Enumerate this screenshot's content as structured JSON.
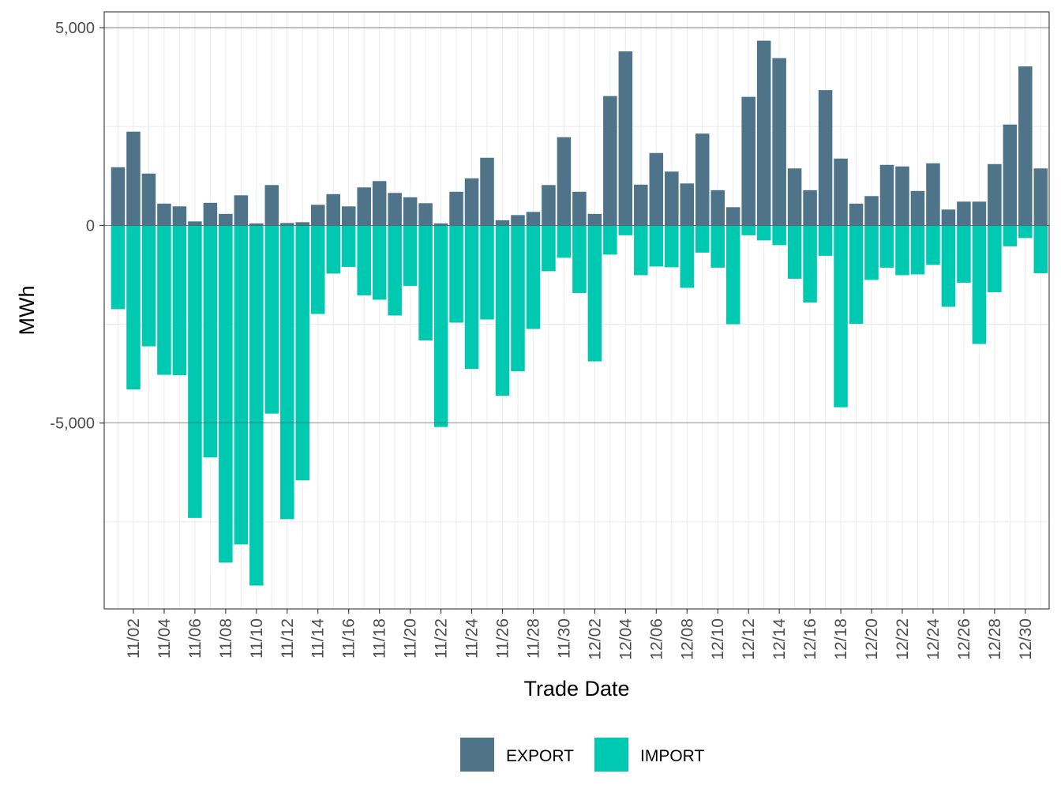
{
  "chart_data": {
    "type": "bar",
    "xlabel": "Trade Date",
    "ylabel": "MWh",
    "ylim": [
      -9700,
      5400
    ],
    "y_ticks": [
      5000,
      0,
      -5000
    ],
    "y_tick_labels": [
      "5,000",
      "0",
      "-5,000"
    ],
    "grid": true,
    "legend_position": "bottom",
    "colors": {
      "EXPORT": "#4f7489",
      "IMPORT": "#00c9b1"
    },
    "x_tick_labels": [
      "11/02",
      "11/04",
      "11/06",
      "11/08",
      "11/10",
      "11/12",
      "11/14",
      "11/16",
      "11/18",
      "11/20",
      "11/22",
      "11/24",
      "11/26",
      "11/28",
      "11/30",
      "12/02",
      "12/04",
      "12/06",
      "12/08",
      "12/10",
      "12/12",
      "12/14",
      "12/16",
      "12/18",
      "12/20",
      "12/22",
      "12/24",
      "12/26",
      "12/28",
      "12/30"
    ],
    "categories": [
      "11/01",
      "11/02",
      "11/03",
      "11/04",
      "11/05",
      "11/06",
      "11/07",
      "11/08",
      "11/09",
      "11/10",
      "11/11",
      "11/12",
      "11/13",
      "11/14",
      "11/15",
      "11/16",
      "11/17",
      "11/18",
      "11/19",
      "11/20",
      "11/21",
      "11/22",
      "11/23",
      "11/24",
      "11/25",
      "11/26",
      "11/27",
      "11/28",
      "11/29",
      "11/30",
      "12/01",
      "12/02",
      "12/03",
      "12/04",
      "12/05",
      "12/06",
      "12/07",
      "12/08",
      "12/09",
      "12/10",
      "12/11",
      "12/12",
      "12/13",
      "12/14",
      "12/15",
      "12/16",
      "12/17",
      "12/18",
      "12/19",
      "12/20",
      "12/21",
      "12/22",
      "12/23",
      "12/24",
      "12/25",
      "12/26",
      "12/27",
      "12/28",
      "12/29",
      "12/30",
      "12/31"
    ],
    "series": [
      {
        "name": "EXPORT",
        "values": [
          1470,
          2370,
          1310,
          550,
          480,
          100,
          570,
          290,
          760,
          50,
          1020,
          60,
          80,
          520,
          790,
          480,
          960,
          1120,
          820,
          710,
          560,
          50,
          850,
          1190,
          1710,
          130,
          260,
          340,
          1020,
          2230,
          850,
          290,
          3270,
          4400,
          1030,
          1830,
          1360,
          1060,
          2320,
          890,
          460,
          3250,
          4670,
          4230,
          1440,
          890,
          3420,
          1690,
          550,
          740,
          1530,
          1490,
          870,
          1570,
          400,
          600,
          600,
          1550,
          2550,
          4020,
          1440
        ]
      },
      {
        "name": "IMPORT",
        "values": [
          -2120,
          -4150,
          -3060,
          -3780,
          -3790,
          -7400,
          -5870,
          -8530,
          -8070,
          -9110,
          -4760,
          -7430,
          -6450,
          -2240,
          -1220,
          -1050,
          -1770,
          -1880,
          -2280,
          -1530,
          -2910,
          -5100,
          -2460,
          -3630,
          -2380,
          -4310,
          -3690,
          -2620,
          -1160,
          -820,
          -1710,
          -3440,
          -740,
          -250,
          -1260,
          -1040,
          -1060,
          -1580,
          -690,
          -1070,
          -2500,
          -250,
          -380,
          -500,
          -1350,
          -1950,
          -770,
          -4600,
          -2490,
          -1380,
          -1070,
          -1260,
          -1240,
          -1000,
          -2060,
          -1450,
          -3000,
          -1690,
          -530,
          -320,
          -1210
        ]
      }
    ]
  }
}
